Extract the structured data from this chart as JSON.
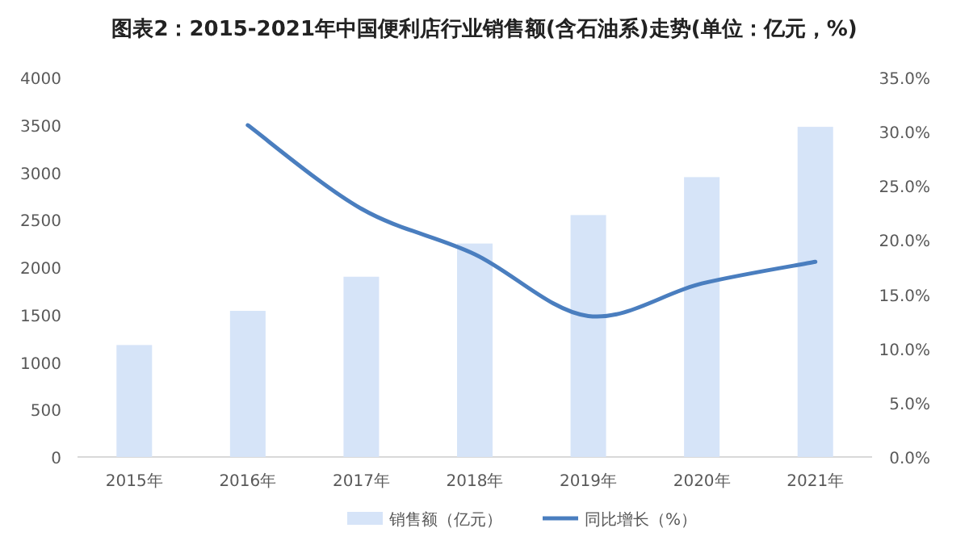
{
  "chart_data": {
    "type": "bar",
    "title": "图表2：2015-2021年中国便利店行业销售额(含石油系)走势(单位：亿元，%)",
    "categories": [
      "2015年",
      "2016年",
      "2017年",
      "2018年",
      "2019年",
      "2020年",
      "2021年"
    ],
    "series": [
      {
        "name": "销售额（亿元）",
        "color": "#d6e4f8",
        "values": [
          1180,
          1540,
          1900,
          2250,
          2550,
          2950,
          3480
        ]
      },
      {
        "name": "同比增长（%）",
        "type": "line",
        "axis": "y2",
        "color": "#4a7ebf",
        "values": [
          null,
          30.6,
          22.9,
          18.7,
          13.0,
          16.0,
          18.0
        ]
      }
    ],
    "ylim": [
      0,
      4000
    ],
    "yticks": [
      0,
      500,
      1000,
      1500,
      2000,
      2500,
      3000,
      3500,
      4000
    ],
    "y2lim": [
      0,
      35
    ],
    "y2ticks": [
      {
        "value": 0,
        "label": "0.0%"
      },
      {
        "value": 5,
        "label": "5.0%"
      },
      {
        "value": 10,
        "label": "10.0%"
      },
      {
        "value": 15,
        "label": "15.0%"
      },
      {
        "value": 20,
        "label": "20.0%"
      },
      {
        "value": 25,
        "label": "25.0%"
      },
      {
        "value": 30,
        "label": "30.0%"
      },
      {
        "value": 35,
        "label": "35.0%"
      }
    ],
    "legend": "bottom",
    "grid": false
  }
}
